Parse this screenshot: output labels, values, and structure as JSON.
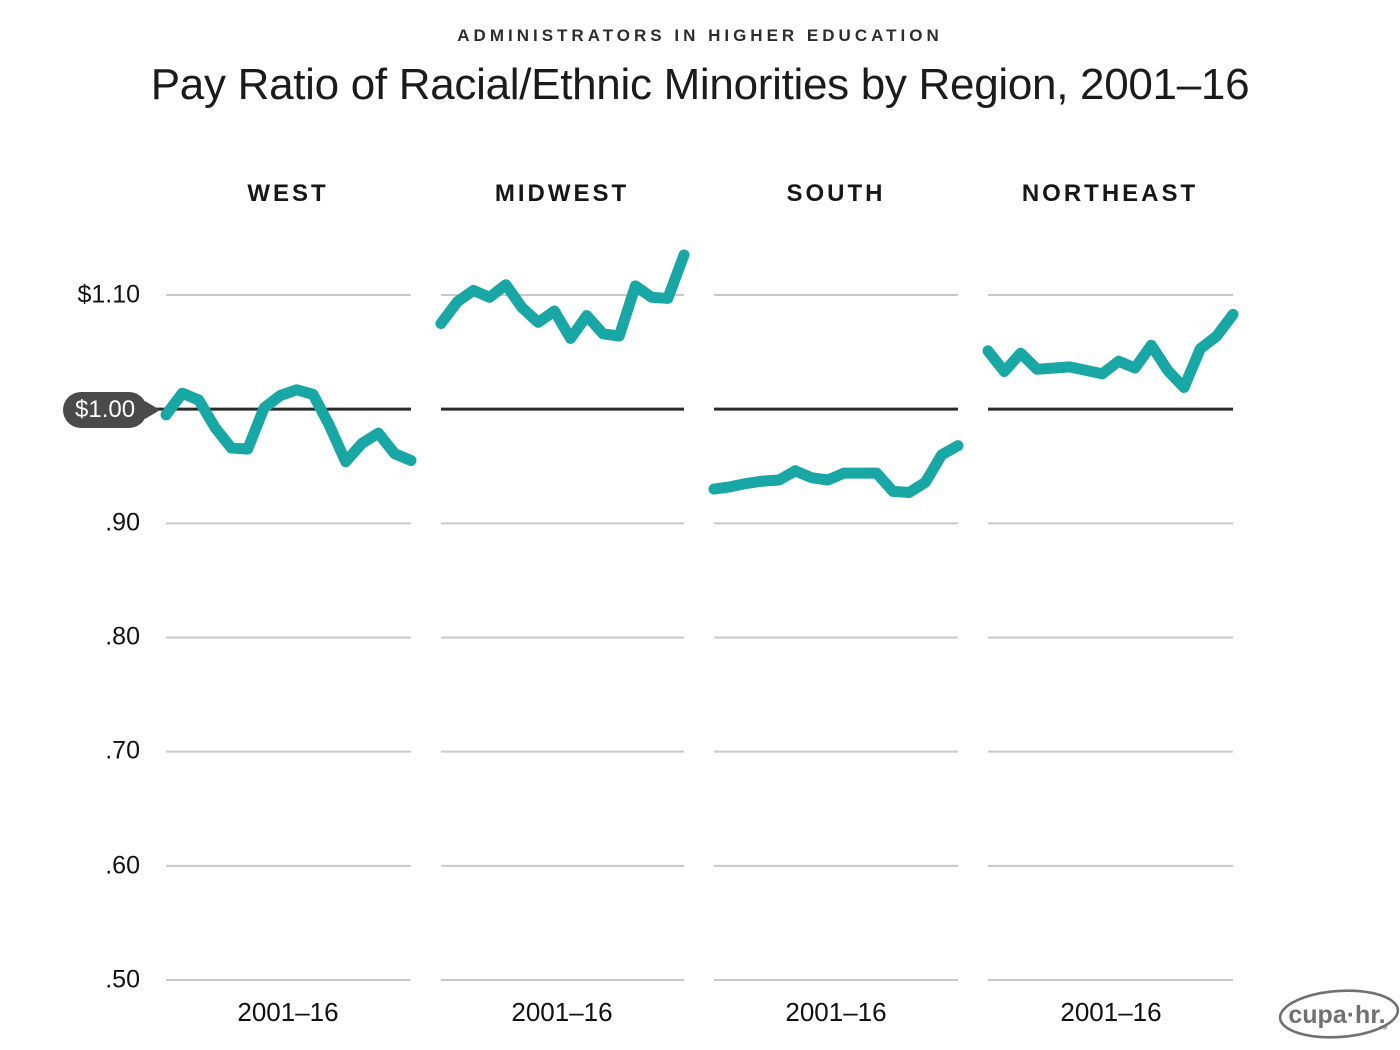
{
  "header": {
    "eyebrow": "ADMINISTRATORS IN HIGHER EDUCATION",
    "title": "Pay Ratio of Racial/Ethnic Minorities by Region, 2001–16"
  },
  "y_axis": {
    "tick_labels": [
      "$1.10",
      ".90",
      ".80",
      ".70",
      ".60",
      ".50"
    ],
    "callout_label": "$1.00"
  },
  "x_axis": {
    "label": "2001–16"
  },
  "logo": {
    "text": "cupa·hr.",
    "tm": "™"
  },
  "colors": {
    "line": "#18a7a4",
    "reference_line": "#2b2b2b",
    "gridline": "#c9c9c9",
    "callout_bg": "#4a4a4a",
    "logo_gray": "#717171"
  },
  "chart_data": {
    "type": "line",
    "title": "Pay Ratio of Racial/Ethnic Minorities by Region, 2001–16",
    "subtitle": "ADMINISTRATORS IN HIGHER EDUCATION",
    "x": [
      2001,
      2002,
      2003,
      2004,
      2005,
      2006,
      2007,
      2008,
      2009,
      2010,
      2011,
      2012,
      2013,
      2014,
      2015,
      2016
    ],
    "x_tick_label": "2001–16",
    "ylim": [
      0.5,
      1.15
    ],
    "yticks": [
      0.5,
      0.6,
      0.7,
      0.8,
      0.9,
      1.0,
      1.1
    ],
    "ytick_labels": [
      ".50",
      ".60",
      ".70",
      ".80",
      ".90",
      "$1.00",
      "$1.10"
    ],
    "reference_line": 1.0,
    "grid": "horizontal",
    "legend": "none",
    "layout": "4 horizontal small multiples, one per region",
    "series": [
      {
        "name": "WEST",
        "values": [
          0.995,
          1.014,
          1.008,
          0.984,
          0.966,
          0.965,
          1.001,
          1.012,
          1.017,
          1.013,
          0.986,
          0.954,
          0.97,
          0.979,
          0.961,
          0.955
        ]
      },
      {
        "name": "MIDWEST",
        "values": [
          1.075,
          1.094,
          1.104,
          1.098,
          1.109,
          1.089,
          1.076,
          1.086,
          1.062,
          1.082,
          1.066,
          1.064,
          1.108,
          1.098,
          1.097,
          1.135
        ]
      },
      {
        "name": "SOUTH",
        "values": [
          0.93,
          0.932,
          0.935,
          0.937,
          0.938,
          0.946,
          0.94,
          0.938,
          0.944,
          0.944,
          0.944,
          0.928,
          0.927,
          0.936,
          0.96,
          0.968
        ]
      },
      {
        "name": "NORTHEAST",
        "values": [
          1.051,
          1.033,
          1.049,
          1.035,
          1.036,
          1.037,
          1.034,
          1.031,
          1.042,
          1.036,
          1.056,
          1.034,
          1.019,
          1.053,
          1.064,
          1.083
        ]
      }
    ]
  }
}
